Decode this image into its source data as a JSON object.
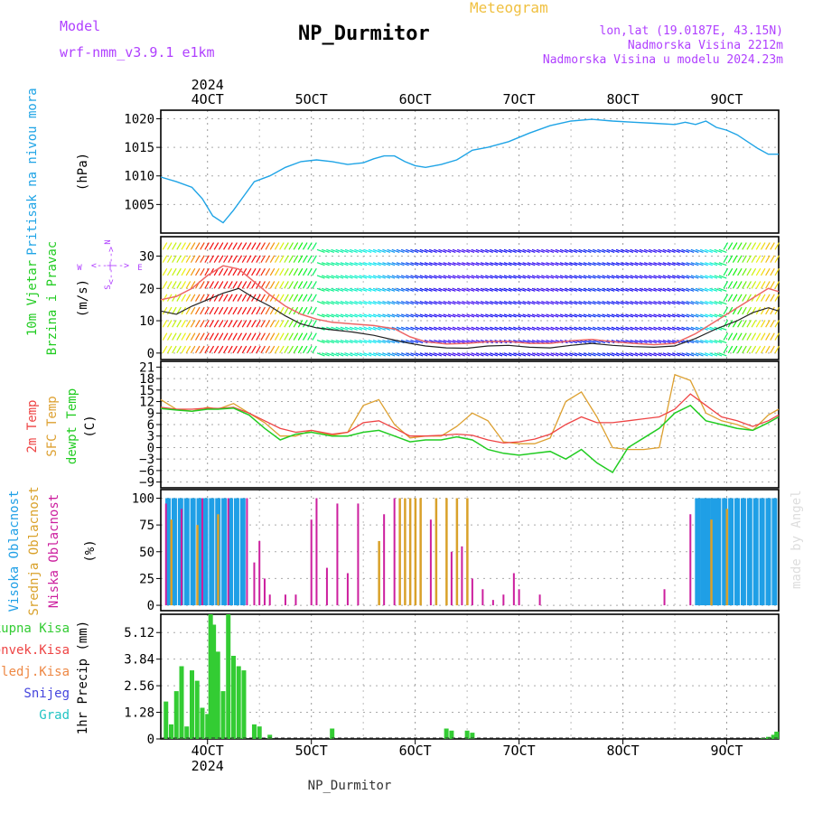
{
  "header": {
    "model_label": "Model",
    "model_name": "wrf-nmm_v3.9.1 e1km",
    "station": "NP_Durmitor",
    "meteogram_label": "Meteogram",
    "lonlat": "lon,lat (19.0187E, 43.15N)",
    "elevation": "Nadmorska Visina 2212m",
    "model_elevation": "Nadmorska Visina u modelu 2024.23m",
    "watermark": "made by Angel",
    "footer_station": "NP_Durmitor"
  },
  "time_axis": {
    "year": "2024",
    "tick_labels": [
      "4OCT",
      "5OCT",
      "6OCT",
      "7OCT",
      "8OCT",
      "9OCT"
    ],
    "tick_days": [
      4,
      5,
      6,
      7,
      8,
      9
    ],
    "range_days": [
      3.55,
      9.5
    ]
  },
  "colors": {
    "pressure": "#1fa4e6",
    "wind_label": "#22cc22",
    "temp2m": "#ee4444",
    "sfc": "#dda030",
    "dew": "#22cc22",
    "cloud_high": "#1f9fe6",
    "cloud_mid": "#d9a12a",
    "cloud_low": "#cc1f9e",
    "rain_total": "#33cc33",
    "rain_conv": "#ee4444",
    "rain_frz": "#ee8844",
    "snow": "#4444dd",
    "hail": "#22c4c4",
    "axis_purple": "#b040ff"
  },
  "panels": {
    "pressure": {
      "label": "Pritisak na nivou mora",
      "unit": "(hPa)",
      "ticks": [
        1005,
        1010,
        1015,
        1020
      ],
      "range": [
        1000,
        1021.5
      ]
    },
    "wind": {
      "label1": "10m Vjetar",
      "label2": "Brzina i Pravac",
      "unit": "(m/s)",
      "ticks": [
        0,
        10,
        20,
        30
      ],
      "range": [
        -2,
        36
      ],
      "compass_w": "W",
      "compass_e": "E",
      "compass_n": "N",
      "compass_s": "S",
      "compass_line": "<--|-->"
    },
    "temp": {
      "label1": "2m Temp",
      "label2": "SFC Temp",
      "label3": "dewpt Temp",
      "unit": "(C)",
      "ticks": [
        -9,
        -6,
        -3,
        0,
        3,
        6,
        9,
        12,
        15,
        18,
        21
      ],
      "range": [
        -10.5,
        22.5
      ]
    },
    "cloud": {
      "label1": "Visoka Oblacnost",
      "label2": "Srednja Oblacnost",
      "label3": "Niska Oblacnost",
      "unit": "(%)",
      "ticks": [
        0,
        25,
        50,
        75,
        100
      ],
      "range": [
        -5,
        108
      ]
    },
    "precip": {
      "labels": [
        "Ukupna Kisa",
        "Konvek.Kisa",
        "Zaledj.Kisa",
        "Snijeg",
        "Grad"
      ],
      "unit": "1hr Precip (mm)",
      "ticks": [
        0,
        1.28,
        2.56,
        3.84,
        5.12
      ],
      "tick_labels": [
        "0",
        "1.28",
        "2.56",
        "3.84",
        "5.12"
      ],
      "range": [
        0,
        6.0
      ]
    }
  },
  "chart_data": {
    "type": "line",
    "x_unit": "day of October 2024",
    "pressure_hPa": {
      "x": [
        3.55,
        3.7,
        3.85,
        3.95,
        4.05,
        4.15,
        4.25,
        4.35,
        4.45,
        4.6,
        4.75,
        4.9,
        5.05,
        5.2,
        5.35,
        5.5,
        5.6,
        5.7,
        5.8,
        5.9,
        6.0,
        6.1,
        6.25,
        6.4,
        6.55,
        6.7,
        6.9,
        7.1,
        7.3,
        7.5,
        7.7,
        7.9,
        8.1,
        8.3,
        8.5,
        8.6,
        8.7,
        8.8,
        8.9,
        9.0,
        9.1,
        9.2,
        9.3,
        9.4,
        9.5
      ],
      "y": [
        1009.8,
        1009.0,
        1008.0,
        1006.0,
        1003.0,
        1001.8,
        1004.0,
        1006.5,
        1009.0,
        1010.0,
        1011.5,
        1012.5,
        1012.8,
        1012.5,
        1012.0,
        1012.3,
        1013.0,
        1013.5,
        1013.5,
        1012.5,
        1011.8,
        1011.5,
        1012.0,
        1012.8,
        1014.5,
        1015.0,
        1016.0,
        1017.5,
        1018.8,
        1019.6,
        1019.9,
        1019.6,
        1019.4,
        1019.2,
        1019.0,
        1019.4,
        1019.0,
        1019.6,
        1018.5,
        1018.0,
        1017.2,
        1016.0,
        1014.8,
        1013.8,
        1013.8
      ]
    },
    "wind_speed_ms": {
      "x": [
        3.55,
        3.7,
        3.85,
        4.0,
        4.15,
        4.3,
        4.45,
        4.6,
        4.75,
        4.9,
        5.05,
        5.2,
        5.4,
        5.6,
        5.8,
        5.95,
        6.1,
        6.3,
        6.5,
        6.7,
        6.9,
        7.1,
        7.3,
        7.5,
        7.7,
        7.9,
        8.1,
        8.3,
        8.5,
        8.7,
        8.9,
        9.1,
        9.25,
        9.4,
        9.5
      ],
      "y": [
        13.0,
        12.0,
        14.5,
        16.5,
        18.5,
        20.0,
        17.0,
        14.5,
        11.5,
        9.0,
        7.8,
        7.2,
        6.5,
        5.5,
        4.0,
        3.0,
        2.2,
        1.6,
        1.5,
        2.2,
        2.4,
        1.8,
        1.6,
        2.4,
        3.0,
        2.4,
        2.0,
        1.8,
        2.2,
        4.5,
        7.5,
        10.0,
        12.5,
        14.0,
        13.0
      ]
    },
    "wind_gust_ms": {
      "x": [
        3.55,
        3.7,
        3.85,
        4.0,
        4.15,
        4.3,
        4.45,
        4.6,
        4.75,
        4.9,
        5.05,
        5.2,
        5.4,
        5.6,
        5.8,
        5.95,
        6.1,
        6.3,
        6.5,
        6.7,
        6.9,
        7.1,
        7.3,
        7.5,
        7.7,
        7.9,
        8.1,
        8.3,
        8.5,
        8.7,
        8.9,
        9.1,
        9.25,
        9.4,
        9.5
      ],
      "y": [
        16.5,
        17.5,
        20.0,
        24.0,
        27.0,
        26.0,
        22.0,
        18.0,
        14.5,
        12.0,
        10.5,
        9.5,
        9.0,
        8.5,
        7.5,
        5.0,
        3.5,
        2.8,
        3.0,
        3.5,
        3.6,
        3.0,
        3.0,
        3.8,
        4.2,
        3.5,
        3.0,
        2.6,
        3.0,
        6.0,
        10.0,
        14.0,
        17.0,
        20.0,
        19.0
      ]
    },
    "temp_2m_C": {
      "x": [
        3.55,
        3.7,
        3.85,
        4.0,
        4.1,
        4.25,
        4.4,
        4.55,
        4.7,
        4.85,
        5.0,
        5.2,
        5.35,
        5.5,
        5.65,
        5.8,
        5.95,
        6.1,
        6.25,
        6.4,
        6.55,
        6.7,
        6.85,
        7.0,
        7.15,
        7.3,
        7.45,
        7.6,
        7.75,
        7.9,
        8.05,
        8.2,
        8.35,
        8.5,
        8.65,
        8.8,
        8.95,
        9.1,
        9.25,
        9.4,
        9.5
      ],
      "y": [
        10.5,
        10.0,
        10.0,
        10.3,
        10.2,
        10.5,
        9.0,
        7.0,
        5.0,
        4.0,
        4.5,
        3.5,
        4.0,
        6.5,
        7.0,
        5.0,
        3.0,
        3.0,
        3.2,
        3.5,
        3.2,
        2.0,
        1.2,
        1.5,
        2.2,
        3.5,
        6.0,
        8.0,
        6.5,
        6.5,
        7.0,
        7.5,
        8.0,
        10.0,
        14.0,
        11.0,
        8.0,
        7.0,
        5.5,
        7.0,
        8.5
      ]
    },
    "temp_sfc_C": {
      "x": [
        3.55,
        3.7,
        3.85,
        4.0,
        4.1,
        4.25,
        4.4,
        4.55,
        4.7,
        4.85,
        5.0,
        5.2,
        5.35,
        5.5,
        5.65,
        5.8,
        5.95,
        6.1,
        6.25,
        6.4,
        6.55,
        6.7,
        6.85,
        7.0,
        7.15,
        7.3,
        7.45,
        7.6,
        7.75,
        7.9,
        8.05,
        8.2,
        8.35,
        8.5,
        8.65,
        8.8,
        8.95,
        9.1,
        9.25,
        9.4,
        9.5
      ],
      "y": [
        12.5,
        10.0,
        9.5,
        10.5,
        10.0,
        11.5,
        9.0,
        6.5,
        3.0,
        3.0,
        4.5,
        3.2,
        4.0,
        11.0,
        12.5,
        6.0,
        2.5,
        3.0,
        3.0,
        5.5,
        9.0,
        7.0,
        1.5,
        1.0,
        1.0,
        2.5,
        12.0,
        14.5,
        8.0,
        0.0,
        -0.5,
        -0.5,
        0.0,
        19.0,
        17.5,
        9.0,
        7.0,
        6.0,
        4.5,
        8.5,
        10.0
      ]
    },
    "dewpoint_C": {
      "x": [
        3.55,
        3.7,
        3.85,
        4.0,
        4.1,
        4.25,
        4.4,
        4.55,
        4.7,
        4.85,
        5.0,
        5.2,
        5.35,
        5.5,
        5.65,
        5.8,
        5.95,
        6.1,
        6.25,
        6.4,
        6.55,
        6.7,
        6.85,
        7.0,
        7.15,
        7.3,
        7.45,
        7.6,
        7.75,
        7.9,
        8.05,
        8.2,
        8.35,
        8.5,
        8.65,
        8.8,
        8.95,
        9.1,
        9.25,
        9.4,
        9.5
      ],
      "y": [
        10.2,
        9.8,
        9.5,
        10.0,
        10.0,
        10.3,
        8.5,
        5.0,
        2.0,
        3.5,
        4.0,
        3.0,
        3.0,
        4.0,
        4.5,
        3.0,
        1.5,
        2.0,
        2.0,
        2.8,
        2.0,
        -0.5,
        -1.5,
        -2.0,
        -1.5,
        -1.0,
        -3.0,
        -0.5,
        -4.0,
        -6.5,
        0.0,
        2.5,
        5.0,
        9.0,
        11.0,
        7.0,
        6.0,
        5.0,
        4.5,
        6.5,
        8.0
      ]
    },
    "cloud_pct": {
      "high_x": [
        3.62,
        3.68,
        3.74,
        3.8,
        3.86,
        3.92,
        3.98,
        4.04,
        4.1,
        4.16,
        4.22,
        4.28,
        4.34,
        8.72,
        8.77,
        8.82,
        8.87,
        8.92,
        8.98,
        9.04,
        9.1,
        9.16,
        9.22,
        9.28,
        9.34,
        9.4,
        9.46
      ],
      "high_y": [
        100,
        100,
        100,
        100,
        100,
        100,
        100,
        100,
        100,
        100,
        100,
        100,
        100,
        100,
        100,
        100,
        100,
        100,
        100,
        100,
        100,
        100,
        100,
        100,
        100,
        100,
        100
      ],
      "mid_x": [
        3.65,
        3.9,
        4.1,
        5.65,
        5.85,
        5.9,
        5.95,
        6.0,
        6.05,
        6.2,
        6.3,
        6.4,
        6.5,
        8.85,
        9.0
      ],
      "mid_y": [
        80,
        75,
        85,
        60,
        100,
        100,
        100,
        100,
        100,
        100,
        100,
        100,
        100,
        80,
        90
      ],
      "low_x": [
        3.6,
        3.75,
        3.95,
        4.2,
        4.38,
        4.45,
        4.5,
        4.55,
        4.6,
        4.75,
        4.85,
        5.0,
        5.05,
        5.15,
        5.25,
        5.35,
        5.45,
        5.7,
        5.8,
        6.15,
        6.35,
        6.45,
        6.55,
        6.65,
        6.75,
        6.85,
        6.95,
        7.0,
        7.2,
        8.4,
        8.65
      ],
      "low_y": [
        95,
        90,
        100,
        100,
        100,
        40,
        60,
        25,
        10,
        10,
        10,
        80,
        100,
        35,
        95,
        30,
        95,
        85,
        100,
        80,
        50,
        55,
        25,
        15,
        5,
        10,
        30,
        15,
        10,
        15,
        85
      ]
    },
    "precip_mm": {
      "total_x": [
        3.6,
        3.65,
        3.7,
        3.75,
        3.8,
        3.85,
        3.9,
        3.95,
        4.0,
        4.03,
        4.06,
        4.1,
        4.15,
        4.2,
        4.25,
        4.3,
        4.35,
        4.45,
        4.5,
        4.6,
        5.2,
        6.3,
        6.35,
        6.5,
        6.55
      ],
      "total_y": [
        1.8,
        0.7,
        2.3,
        3.5,
        0.6,
        3.3,
        2.8,
        1.5,
        1.2,
        6.0,
        5.5,
        4.2,
        2.3,
        6.0,
        4.0,
        3.5,
        3.3,
        0.7,
        0.6,
        0.2,
        0.5,
        0.5,
        0.4,
        0.4,
        0.3
      ],
      "total_x2": [
        9.35,
        9.4,
        9.45,
        9.48
      ],
      "total_y2": [
        0.05,
        0.1,
        0.2,
        0.35
      ]
    }
  }
}
